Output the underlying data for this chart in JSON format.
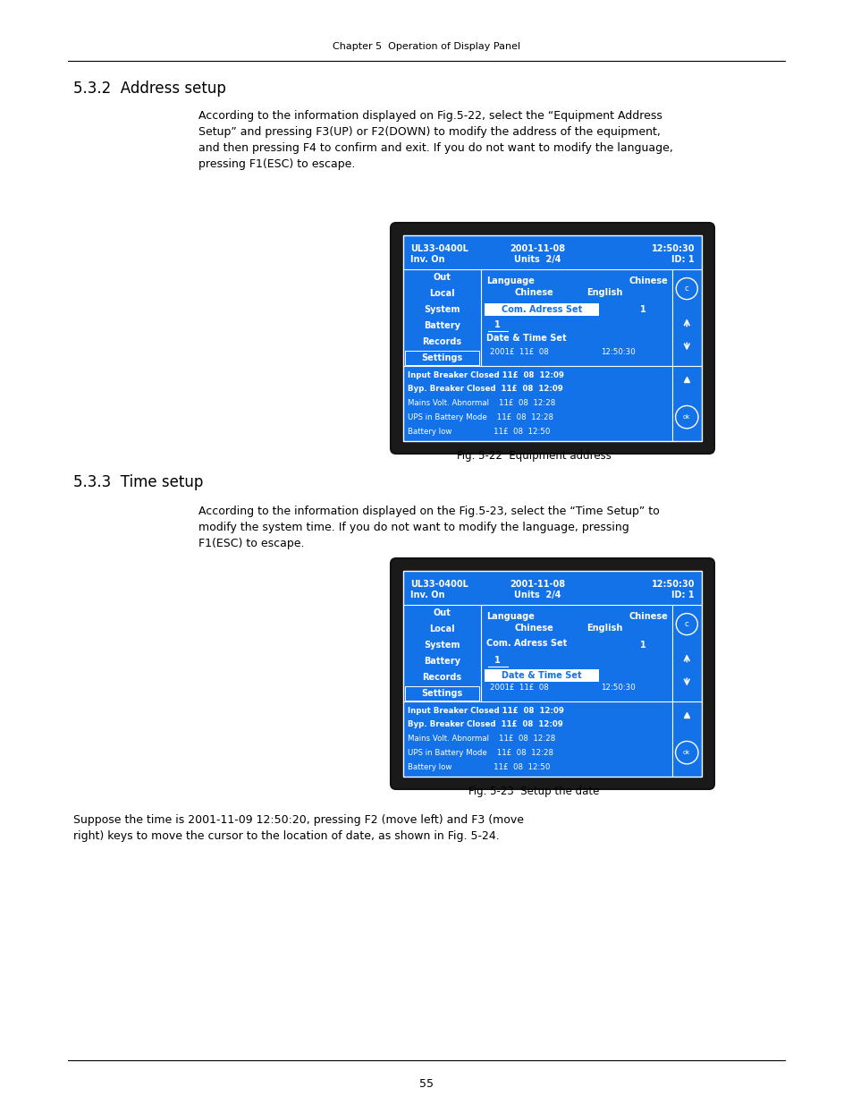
{
  "page_header": "Chapter 5  Operation of Display Panel",
  "section1_title": "5.3.2  Address setup",
  "section1_body1": "According to the information displayed on Fig.5-22, select the “Equipment Address",
  "section1_body2": "Setup” and pressing F3(UP) or F2(DOWN) to modify the address of the equipment,",
  "section1_body3": "and then pressing F4 to confirm and exit. If you do not want to modify the language,",
  "section1_body4": "pressing F1(ESC) to escape.",
  "fig1_caption": "Fig. 5-22  Equipment address",
  "section2_title": "5.3.3  Time setup",
  "section2_body1": "According to the information displayed on the Fig.5-23, select the “Time Setup” to",
  "section2_body2": "modify the system time. If you do not want to modify the language, pressing",
  "section2_body3": "F1(ESC) to escape.",
  "fig2_caption": "Fig. 5-23  Setup the date",
  "bottom_text1": "Suppose the time is 2001-11-09 12:50:20, pressing F2 (move left) and F3 (move",
  "bottom_text2": "right) keys to move the cursor to the location of date, as shown in Fig. 5-24.",
  "page_number": "55",
  "bg_blue": "#1472e8",
  "white": "#ffffff",
  "log1": "Input Breaker Closed 11£  08  12:09",
  "log2": "Byp. Breaker Closed  11£  08  12:09",
  "log3": "Mains Volt. Abnormal    11£  08  12:28",
  "log4": "UPS in Battery Mode    11£  08  12:28",
  "log5": "Battery low                 11£  08  12:50"
}
